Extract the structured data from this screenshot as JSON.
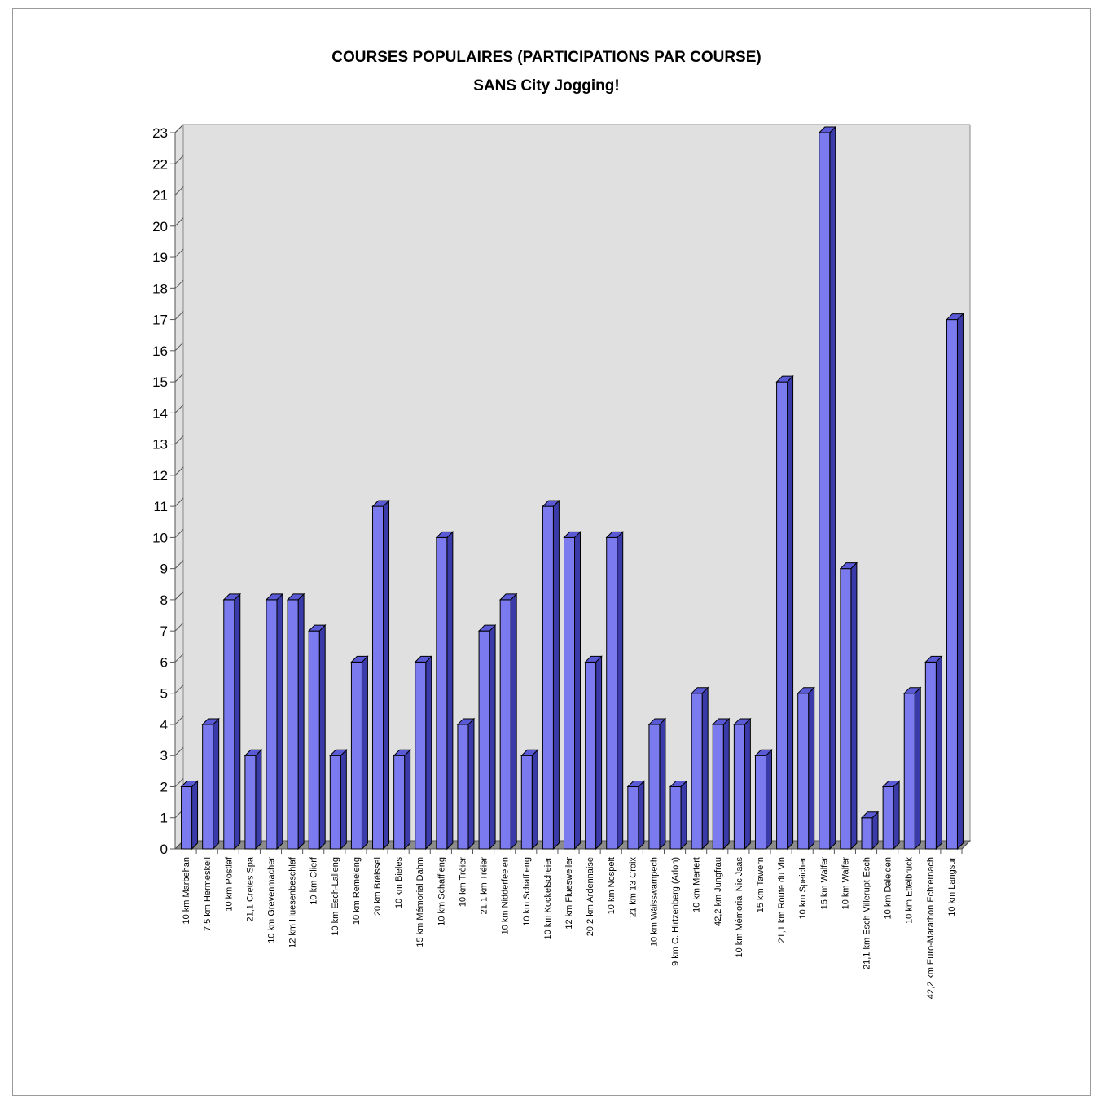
{
  "chart_data": {
    "type": "bar",
    "title": "COURSES POPULAIRES (PARTICIPATIONS PAR COURSE)",
    "subtitle": "SANS City Jogging!",
    "xlabel": "",
    "ylabel": "",
    "ylim": [
      0,
      23
    ],
    "yticks": [
      0,
      1,
      2,
      3,
      4,
      5,
      6,
      7,
      8,
      9,
      10,
      11,
      12,
      13,
      14,
      15,
      16,
      17,
      18,
      19,
      20,
      21,
      22,
      23
    ],
    "grid": false,
    "legend": "none",
    "style": "3d",
    "colors": {
      "bar_front": "#7b7bef",
      "bar_top": "#5a5ad6",
      "bar_side": "#3a3aa8",
      "plot_background": "#e0e0e0",
      "floor": "#8c8c8c",
      "axis": "#555555"
    },
    "categories": [
      "10 km Marbehan",
      "7,5 km Hermeskeil",
      "10 km Postlaf",
      "21,1 Cretes Spa",
      "10 km Grevenmacher",
      "12 km Huesenbeschlaf",
      "10 km Clierf",
      "10 km Esch-Lalleng",
      "10 km Remeleng",
      "20 km Bréissel",
      "10 km Bieles",
      "15 km Mémorial Dahm",
      "10 km Schaffleng",
      "10 km Tréier",
      "21,1 km Tréier",
      "10 km Nidderfeelen",
      "10 km Schaffleng",
      "10 km Kockelscheier",
      "12 km Fluesweiler",
      "20,2 km Ardennaise",
      "10 km Nospelt",
      "21 km 13 Croix",
      "10 km Wäisswampech",
      "9 km C. Hirtzenberg (Arlon)",
      "10 km Mertert",
      "42,2 km Jungfrau",
      "10 km Mémorial Nic Jaas",
      "15 km Tawern",
      "21,1 km Route du Vin",
      "10 km Speicher",
      "15 km Walfer",
      "10 km Walfer",
      "21,1 km Esch-Villerupt-Esch",
      "10 km Daleiden",
      "10 km Ettelbruck",
      "42,2 km Euro-Marathon Echternach",
      "10 km Langsur"
    ],
    "values": [
      2,
      4,
      8,
      3,
      8,
      8,
      7,
      3,
      6,
      11,
      3,
      6,
      10,
      4,
      7,
      8,
      3,
      11,
      10,
      6,
      10,
      2,
      4,
      2,
      5,
      4,
      4,
      3,
      15,
      5,
      23,
      9,
      1,
      2,
      5,
      6,
      17
    ]
  }
}
